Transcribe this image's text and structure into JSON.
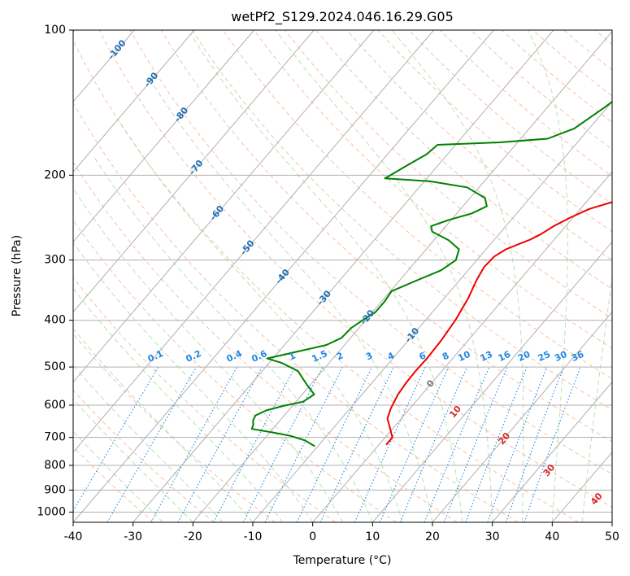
{
  "chart_data": {
    "type": "line",
    "subtype": "skew-t log-p thermodynamic diagram",
    "title": "wetPf2_S129.2024.046.16.29.G05",
    "xlabel": "Temperature (°C)",
    "ylabel": "Pressure (hPa)",
    "xlim": [
      -40,
      50
    ],
    "ylim": [
      1050,
      100
    ],
    "y_scale": "log",
    "grid": true,
    "x_ticks": [
      "-40",
      "-30",
      "-20",
      "-10",
      "0",
      "10",
      "20",
      "30",
      "40",
      "50"
    ],
    "y_ticks": [
      "100",
      "200",
      "300",
      "400",
      "500",
      "600",
      "700",
      "800",
      "900",
      "1000"
    ],
    "colors": {
      "temperature": "#ee0000",
      "dewpoint": "#008000",
      "isotherm": "#b0b0b0",
      "dry_adiabat": "#f4a582",
      "moist_adiabat": "#a6d4a0",
      "mixing_ratio": "#1e88e5",
      "isotherm_label": "#1f6fb4",
      "red_label": "#d62728",
      "zero_label": "#777777"
    },
    "series": [
      {
        "name": "",
        "color": "#ee0000",
        "points": [
          [
            1.2,
            725
          ],
          [
            1.2,
            700
          ],
          [
            -0.5,
            670
          ],
          [
            -2.3,
            640
          ],
          [
            -3.2,
            610
          ],
          [
            -4.0,
            570
          ],
          [
            -4.3,
            540
          ],
          [
            -4.4,
            510
          ],
          [
            -4.3,
            480
          ],
          [
            -4.5,
            440
          ],
          [
            -5.0,
            400
          ],
          [
            -6.0,
            360
          ],
          [
            -7.2,
            330
          ],
          [
            -7.8,
            310
          ],
          [
            -7.6,
            295
          ],
          [
            -6.7,
            285
          ],
          [
            -5.3,
            278
          ],
          [
            -4.0,
            272
          ],
          [
            -3.0,
            265
          ],
          [
            -2.0,
            255
          ],
          [
            -0.5,
            245
          ],
          [
            1.5,
            235
          ],
          [
            6.0,
            223
          ],
          [
            12.0,
            210
          ],
          [
            17.0,
            198
          ],
          [
            20.5,
            185
          ],
          [
            22.5,
            172
          ],
          [
            23.5,
            158
          ],
          [
            25.0,
            148
          ],
          [
            28.0,
            133
          ],
          [
            31.0,
            120
          ],
          [
            32.5,
            110
          ],
          [
            33.5,
            103
          ],
          [
            34.0,
            100
          ]
        ]
      },
      {
        "name": "",
        "color": "#008000",
        "points": [
          [
            -10.5,
            730
          ],
          [
            -13.0,
            710
          ],
          [
            -16.0,
            695
          ],
          [
            -19.0,
            685
          ],
          [
            -23.5,
            672
          ],
          [
            -23.8,
            660
          ],
          [
            -24.5,
            645
          ],
          [
            -24.8,
            630
          ],
          [
            -23.7,
            615
          ],
          [
            -21.5,
            602
          ],
          [
            -18.8,
            590
          ],
          [
            -18.0,
            570
          ],
          [
            -20.5,
            545
          ],
          [
            -22.0,
            530
          ],
          [
            -24.0,
            510
          ],
          [
            -28.0,
            490
          ],
          [
            -31.0,
            480
          ],
          [
            -27.0,
            465
          ],
          [
            -23.0,
            450
          ],
          [
            -21.5,
            435
          ],
          [
            -21.3,
            415
          ],
          [
            -20.5,
            400
          ],
          [
            -19.5,
            385
          ],
          [
            -19.5,
            365
          ],
          [
            -19.8,
            348
          ],
          [
            -17.5,
            333
          ],
          [
            -14.5,
            315
          ],
          [
            -13.5,
            300
          ],
          [
            -14.5,
            285
          ],
          [
            -17.5,
            273
          ],
          [
            -21.5,
            262
          ],
          [
            -22.5,
            255
          ],
          [
            -20.5,
            248
          ],
          [
            -17.5,
            240
          ],
          [
            -16.0,
            232
          ],
          [
            -17.5,
            223
          ],
          [
            -22.0,
            212
          ],
          [
            -29.0,
            206
          ],
          [
            -37.0,
            203
          ],
          [
            -35.5,
            193
          ],
          [
            -33.5,
            181
          ],
          [
            -33.0,
            173
          ],
          [
            -23.0,
            171
          ],
          [
            -15.5,
            168
          ],
          [
            -12.5,
            160
          ],
          [
            -10.5,
            145
          ],
          [
            -9.0,
            133
          ],
          [
            -8.0,
            125
          ],
          [
            -5.5,
            118
          ],
          [
            -3.0,
            112
          ],
          [
            -0.5,
            106
          ],
          [
            1.0,
            101
          ],
          [
            1.5,
            100
          ]
        ]
      }
    ],
    "isotherm_labels": [
      "-100",
      "-90",
      "-80",
      "-70",
      "-60",
      "-50",
      "-40",
      "-30",
      "-20",
      "-10",
      "0"
    ],
    "mixing_ratio_labels": [
      "0.1",
      "0.2",
      "0.4",
      "0.6",
      "1",
      "1.5",
      "2",
      "3",
      "4",
      "6",
      "8",
      "10",
      "13",
      "16",
      "20",
      "25",
      "30",
      "36"
    ],
    "red_labels": [
      "10",
      "20",
      "30",
      "40"
    ]
  }
}
